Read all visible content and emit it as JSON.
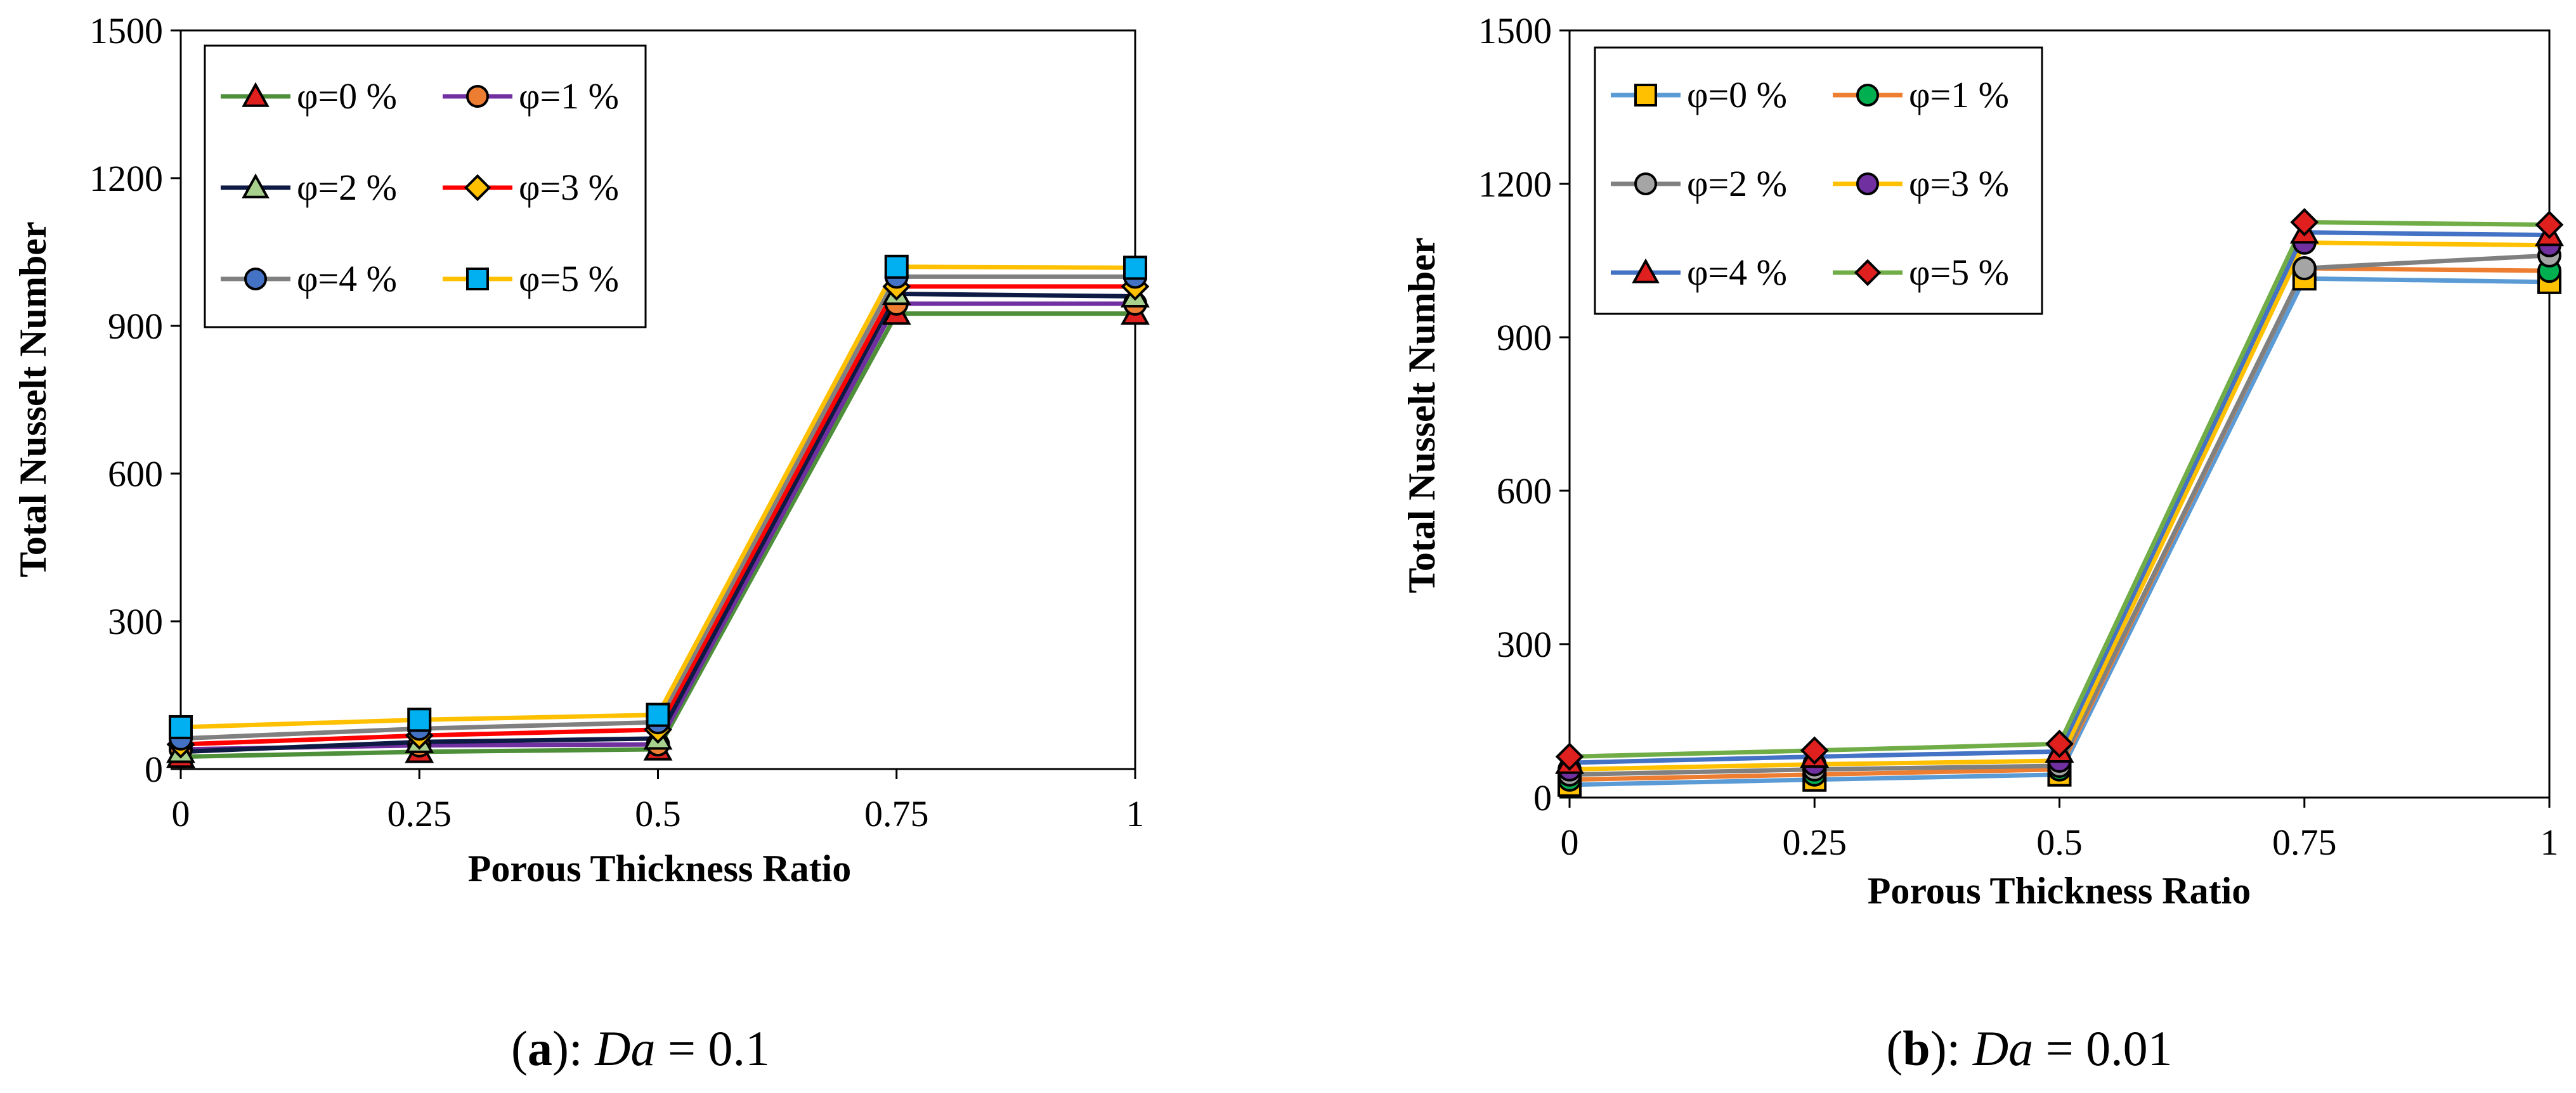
{
  "chart_data": [
    {
      "type": "line",
      "panel": "a",
      "caption": {
        "letter": "a",
        "text_parts": [
          "(",
          "a",
          "): ",
          "Da",
          " = 0.1"
        ]
      },
      "xlabel": "Porous Thickness Ratio",
      "ylabel": "Total Nusselt Number",
      "x": [
        0,
        0.25,
        0.5,
        0.75,
        1
      ],
      "x_tick_labels": [
        "0",
        "0.25",
        "0.5",
        "0.75",
        "1"
      ],
      "y_ticks": [
        0,
        300,
        600,
        900,
        1200,
        1500
      ],
      "xlim": [
        0,
        1
      ],
      "ylim": [
        0,
        1500
      ],
      "legend_position": "top-left",
      "series": [
        {
          "name": "φ=0 %",
          "color": "#4e8f3a",
          "marker": "triangle",
          "fill": "#e0201e",
          "values": [
            25,
            35,
            40,
            925,
            925
          ]
        },
        {
          "name": "φ=1 %",
          "color": "#7030a0",
          "marker": "circle",
          "fill": "#ed7d31",
          "values": [
            40,
            48,
            50,
            945,
            945
          ]
        },
        {
          "name": "φ=2 %",
          "color": "#0d1a44",
          "marker": "triangle",
          "fill": "#a9d18e",
          "values": [
            35,
            55,
            62,
            965,
            960
          ]
        },
        {
          "name": "φ=3 %",
          "color": "#ff0000",
          "marker": "diamond",
          "fill": "#ffc000",
          "values": [
            50,
            68,
            80,
            980,
            980
          ]
        },
        {
          "name": "φ=4 %",
          "color": "#808080",
          "marker": "circle",
          "fill": "#4472c4",
          "values": [
            62,
            82,
            95,
            1000,
            1000
          ]
        },
        {
          "name": "φ=5 %",
          "color": "#ffc000",
          "marker": "square",
          "fill": "#00b0f0",
          "values": [
            85,
            100,
            110,
            1020,
            1018
          ]
        }
      ]
    },
    {
      "type": "line",
      "panel": "b",
      "caption": {
        "letter": "b",
        "text_parts": [
          "(",
          "b",
          "): ",
          "Da",
          " = 0.01"
        ]
      },
      "xlabel": "Porous Thickness Ratio",
      "ylabel": "Total Nusselt Number",
      "x": [
        0,
        0.25,
        0.5,
        0.75,
        1
      ],
      "x_tick_labels": [
        "0",
        "0.25",
        "0.5",
        "0.75",
        "1"
      ],
      "y_ticks": [
        0,
        300,
        600,
        900,
        1200,
        1500
      ],
      "xlim": [
        0,
        1
      ],
      "ylim": [
        0,
        1500
      ],
      "legend_position": "top-left",
      "series": [
        {
          "name": "φ=0 %",
          "color": "#5b9bd5",
          "marker": "square",
          "fill": "#ffc000",
          "values": [
            25,
            35,
            45,
            1015,
            1008
          ]
        },
        {
          "name": "φ=1 %",
          "color": "#ed7d31",
          "marker": "circle",
          "fill": "#00b050",
          "values": [
            35,
            45,
            55,
            1035,
            1030
          ]
        },
        {
          "name": "φ=2 %",
          "color": "#808080",
          "marker": "circle",
          "fill": "#a5a5a5",
          "values": [
            45,
            55,
            62,
            1035,
            1060
          ]
        },
        {
          "name": "φ=3 %",
          "color": "#ffc000",
          "marker": "circle",
          "fill": "#7030a0",
          "values": [
            55,
            65,
            72,
            1085,
            1080
          ]
        },
        {
          "name": "φ=4 %",
          "color": "#4472c4",
          "marker": "triangle",
          "fill": "#e0201e",
          "values": [
            68,
            80,
            90,
            1105,
            1100
          ]
        },
        {
          "name": "φ=5 %",
          "color": "#70ad47",
          "marker": "diamond",
          "fill": "#e0201e",
          "values": [
            80,
            92,
            105,
            1125,
            1120
          ]
        }
      ]
    }
  ]
}
